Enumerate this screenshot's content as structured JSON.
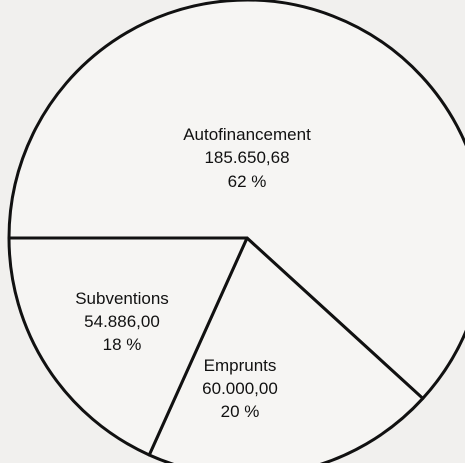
{
  "chart_data": {
    "type": "pie",
    "slices": [
      {
        "label": "Autofinancement",
        "value_text": "185.650,68",
        "percent_text": "62 %",
        "value": 185650.68,
        "percent": 62
      },
      {
        "label": "Emprunts",
        "value_text": "60.000,00",
        "percent_text": "20 %",
        "value": 60000.0,
        "percent": 20
      },
      {
        "label": "Subventions",
        "value_text": "54.886,00",
        "percent_text": "18 %",
        "value": 54886.0,
        "percent": 18
      }
    ],
    "colors": {
      "background": "#f1f0ee",
      "fill": "#f6f5f3",
      "stroke": "#111111"
    }
  }
}
